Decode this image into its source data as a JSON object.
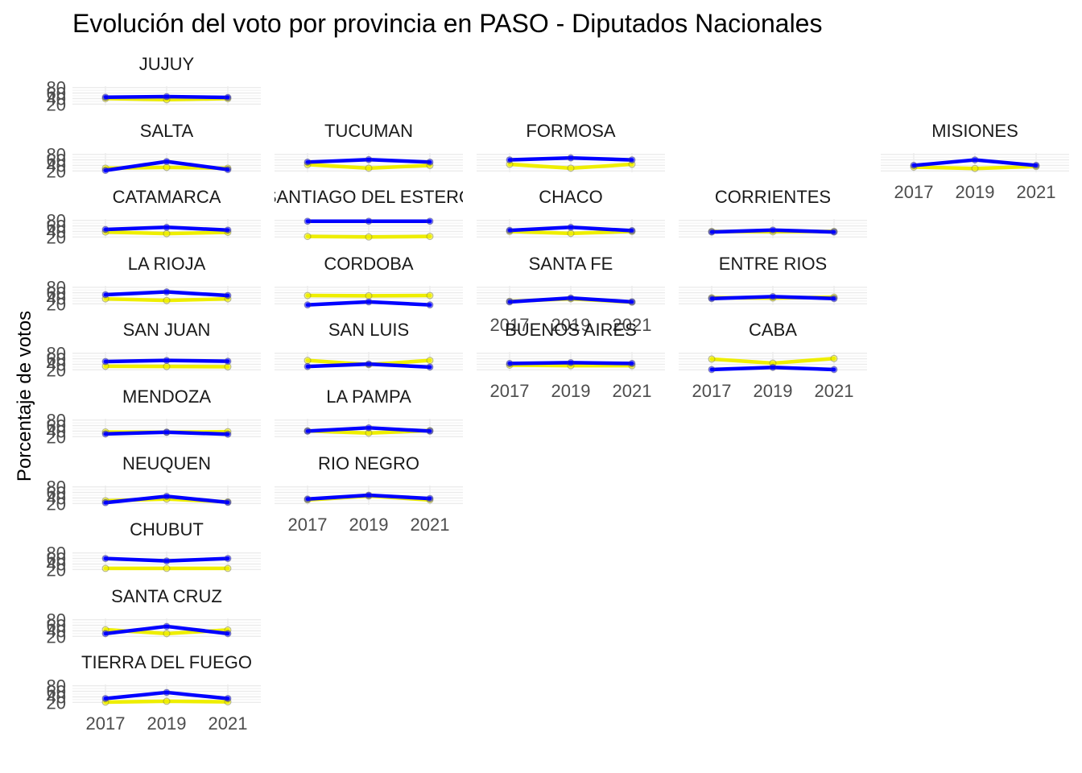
{
  "chart_data": {
    "type": "line",
    "title": "Evolución del voto por provincia en PASO - Diputados Nacionales",
    "xlabel": "",
    "ylabel": "Porcentaje de votos",
    "x": [
      2017,
      2019,
      2021
    ],
    "x_tick_labels": [
      "2017",
      "2019",
      "2021"
    ],
    "y_tick_labels": [
      "20",
      "40",
      "60",
      "80"
    ],
    "ylim": [
      15,
      85
    ],
    "grid": true,
    "legend": "none",
    "series_colors": {
      "blue": "#0000FF",
      "yellow": "#EEEE00"
    },
    "facets": [
      {
        "name": "JUJUY",
        "blue": [
          45,
          47,
          44
        ],
        "yellow": [
          40,
          36,
          40
        ]
      },
      {
        "name": "SALTA",
        "blue": [
          22,
          54,
          25
        ],
        "yellow": [
          30,
          33,
          30
        ]
      },
      {
        "name": "TUCUMAN",
        "blue": [
          52,
          61,
          52
        ],
        "yellow": [
          43,
          30,
          40
        ]
      },
      {
        "name": "FORMOSA",
        "blue": [
          60,
          67,
          60
        ],
        "yellow": [
          44,
          30,
          44
        ]
      },
      {
        "name": "MISIONES",
        "blue": [
          40,
          60,
          40
        ],
        "yellow": [
          34,
          29,
          36
        ]
      },
      {
        "name": "CATAMARCA",
        "blue": [
          47,
          55,
          45
        ],
        "yellow": [
          38,
          32,
          37
        ]
      },
      {
        "name": "SANTIAGO DEL ESTERO",
        "blue": [
          77,
          77,
          77
        ],
        "yellow": [
          22,
          20,
          22
        ]
      },
      {
        "name": "CHACO",
        "blue": [
          44,
          55,
          43
        ],
        "yellow": [
          40,
          33,
          40
        ]
      },
      {
        "name": "CORRIENTES",
        "blue": [
          38,
          45,
          38
        ],
        "yellow": [
          40,
          39,
          40
        ]
      },
      {
        "name": "LA RIOJA",
        "blue": [
          53,
          63,
          50
        ],
        "yellow": [
          38,
          32,
          38
        ]
      },
      {
        "name": "CORDOBA",
        "blue": [
          16,
          27,
          16
        ],
        "yellow": [
          50,
          49,
          50
        ]
      },
      {
        "name": "SANTA FE",
        "blue": [
          27,
          41,
          27
        ],
        "yellow": [
          29,
          38,
          26
        ]
      },
      {
        "name": "ENTRE RIOS",
        "blue": [
          39,
          46,
          39
        ],
        "yellow": [
          42,
          41,
          44
        ]
      },
      {
        "name": "SAN JUAN",
        "blue": [
          50,
          54,
          51
        ],
        "yellow": [
          33,
          32,
          31
        ]
      },
      {
        "name": "SAN LUIS",
        "blue": [
          32,
          41,
          30
        ],
        "yellow": [
          54,
          39,
          54
        ]
      },
      {
        "name": "BUENOS AIRES",
        "blue": [
          43,
          46,
          43
        ],
        "yellow": [
          37,
          35,
          35
        ]
      },
      {
        "name": "CABA",
        "blue": [
          21,
          29,
          21
        ],
        "yellow": [
          59,
          44,
          61
        ]
      },
      {
        "name": "MENDOZA",
        "blue": [
          30,
          36,
          29
        ],
        "yellow": [
          37,
          36,
          38
        ]
      },
      {
        "name": "LA PAMPA",
        "blue": [
          40,
          52,
          40
        ],
        "yellow": [
          41,
          33,
          42
        ]
      },
      {
        "name": "NEUQUEN",
        "blue": [
          23,
          46,
          24
        ],
        "yellow": [
          30,
          36,
          26
        ]
      },
      {
        "name": "RIO NEGRO",
        "blue": [
          36,
          50,
          38
        ],
        "yellow": [
          33,
          47,
          33
        ]
      },
      {
        "name": "CHUBUT",
        "blue": [
          60,
          51,
          60
        ],
        "yellow": [
          24,
          24,
          24
        ]
      },
      {
        "name": "SANTA CRUZ",
        "blue": [
          30,
          56,
          30
        ],
        "yellow": [
          44,
          30,
          43
        ]
      },
      {
        "name": "TIERRA DEL FUEGO",
        "blue": [
          34,
          56,
          34
        ],
        "yellow": [
          21,
          24,
          22
        ]
      }
    ]
  }
}
